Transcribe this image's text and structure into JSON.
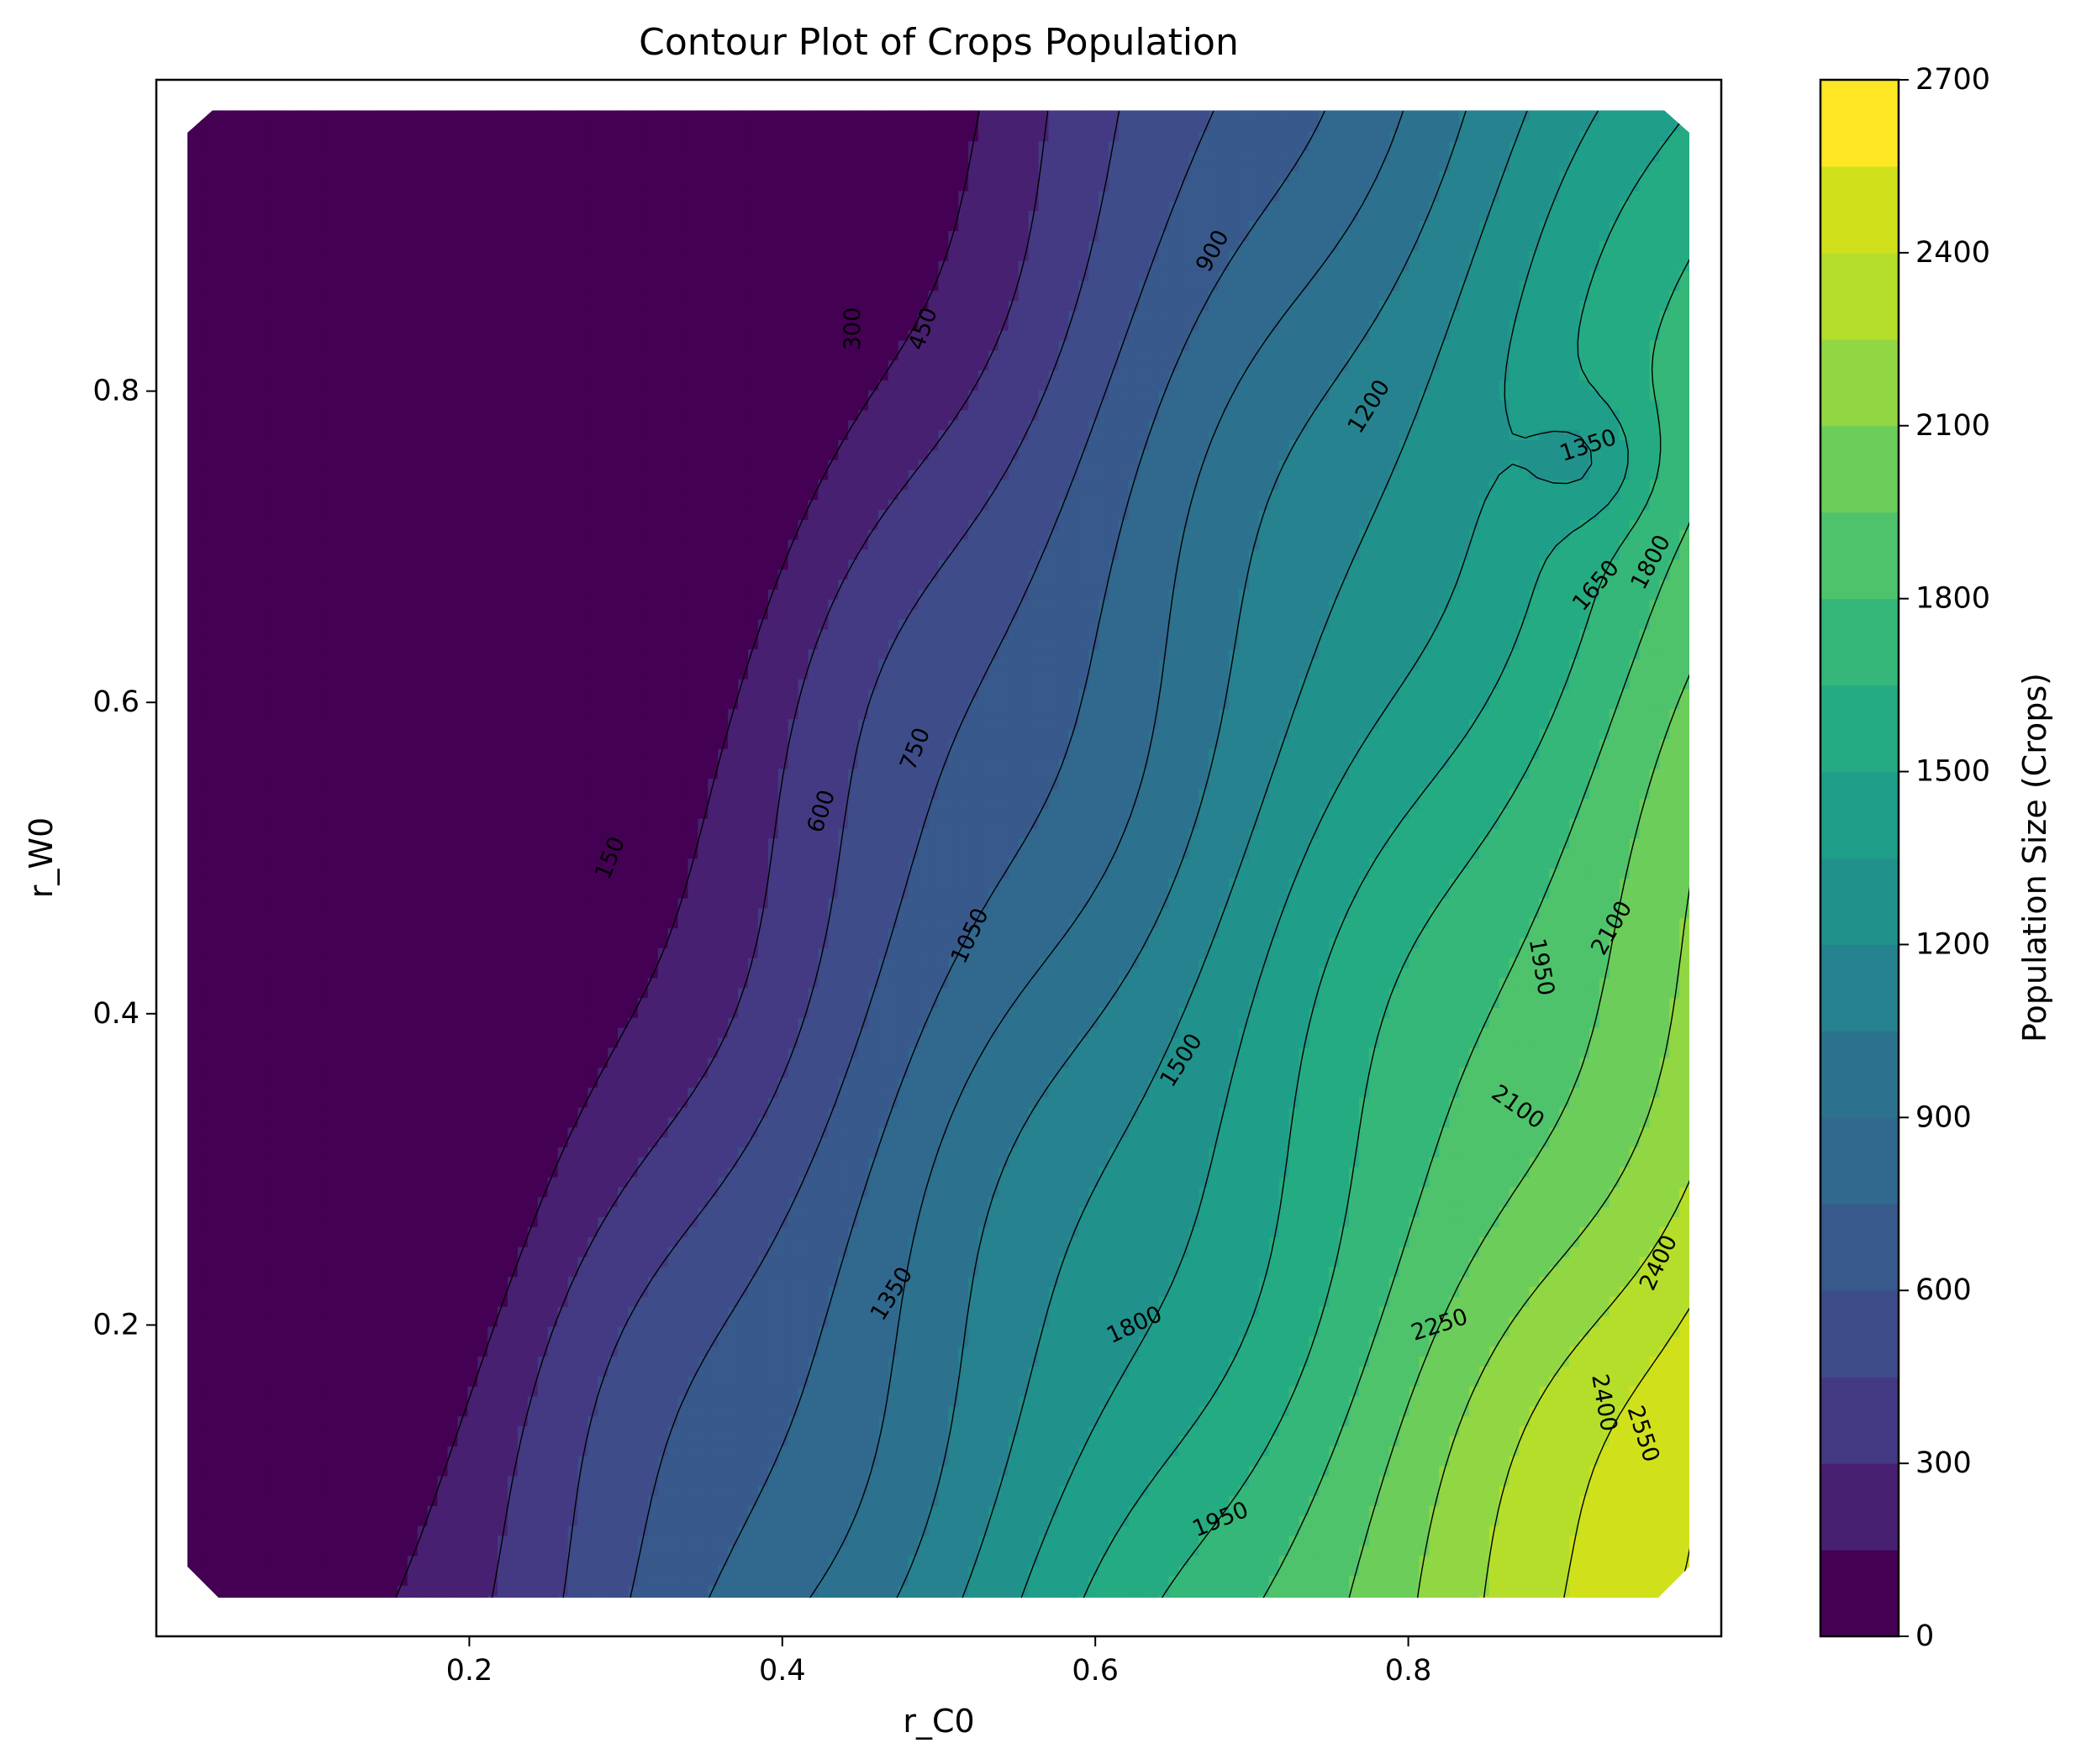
{
  "chart_data": {
    "type": "contour",
    "title": "Contour Plot of Crops Population",
    "xlabel": "r_C0",
    "ylabel": "r_W0",
    "colorbar_label": "Population Size (Crops)",
    "colormap": "viridis",
    "xlim": [
      0.0,
      1.0
    ],
    "ylim": [
      0.0,
      1.0
    ],
    "x_ticks": [
      0.2,
      0.4,
      0.6,
      0.8
    ],
    "x_tick_labels": [
      "0.2",
      "0.4",
      "0.6",
      "0.8"
    ],
    "y_ticks": [
      0.2,
      0.4,
      0.6,
      0.8
    ],
    "y_tick_labels": [
      "0.2",
      "0.4",
      "0.6",
      "0.8"
    ],
    "data_extent": {
      "x": [
        0.02,
        0.98
      ],
      "y": [
        0.02,
        0.98
      ]
    },
    "levels": [
      0,
      150,
      300,
      450,
      600,
      750,
      900,
      1050,
      1200,
      1350,
      1500,
      1650,
      1800,
      1950,
      2100,
      2250,
      2400,
      2550,
      2700
    ],
    "colorbar_ticks": [
      0,
      300,
      600,
      900,
      1200,
      1500,
      1800,
      2100,
      2400,
      2700
    ],
    "colorbar_tick_labels": [
      "0",
      "300",
      "600",
      "900",
      "1200",
      "1500",
      "1800",
      "2100",
      "2400",
      "2700"
    ],
    "level_colors": [
      "#440154",
      "#482071",
      "#443a83",
      "#3e4c8a",
      "#38598c",
      "#31688e",
      "#2c728e",
      "#26828e",
      "#21918c",
      "#1f9e89",
      "#25ab82",
      "#35b779",
      "#4ec36b",
      "#6ccd5a",
      "#90d743",
      "#b5de2b",
      "#d0e11c",
      "#fde725"
    ],
    "contour_labels": [
      {
        "text": "150",
        "x": 0.29,
        "y": 0.5,
        "rot": -68
      },
      {
        "text": "300",
        "x": 0.445,
        "y": 0.84,
        "rot": -90
      },
      {
        "text": "450",
        "x": 0.49,
        "y": 0.84,
        "rot": -70
      },
      {
        "text": "600",
        "x": 0.425,
        "y": 0.53,
        "rot": -72
      },
      {
        "text": "750",
        "x": 0.485,
        "y": 0.57,
        "rot": -68
      },
      {
        "text": "900",
        "x": 0.675,
        "y": 0.89,
        "rot": -62
      },
      {
        "text": "1050",
        "x": 0.52,
        "y": 0.45,
        "rot": -65
      },
      {
        "text": "1200",
        "x": 0.775,
        "y": 0.79,
        "rot": -58
      },
      {
        "text": "1350",
        "x": 0.915,
        "y": 0.765,
        "rot": -18
      },
      {
        "text": "1350",
        "x": 0.47,
        "y": 0.22,
        "rot": -58
      },
      {
        "text": "1500",
        "x": 0.655,
        "y": 0.37,
        "rot": -58
      },
      {
        "text": "1650",
        "x": 0.92,
        "y": 0.675,
        "rot": -50
      },
      {
        "text": "1800",
        "x": 0.955,
        "y": 0.69,
        "rot": -62
      },
      {
        "text": "1800",
        "x": 0.625,
        "y": 0.2,
        "rot": -25
      },
      {
        "text": "1950",
        "x": 0.885,
        "y": 0.43,
        "rot": 80
      },
      {
        "text": "2100",
        "x": 0.93,
        "y": 0.455,
        "rot": -60
      },
      {
        "text": "2100",
        "x": 0.87,
        "y": 0.34,
        "rot": 35
      },
      {
        "text": "1950",
        "x": 0.68,
        "y": 0.075,
        "rot": -22
      },
      {
        "text": "2250",
        "x": 0.82,
        "y": 0.2,
        "rot": -18
      },
      {
        "text": "2400",
        "x": 0.96,
        "y": 0.24,
        "rot": -65
      },
      {
        "text": "2400",
        "x": 0.925,
        "y": 0.15,
        "rot": 80
      },
      {
        "text": "2550",
        "x": 0.95,
        "y": 0.13,
        "rot": 72
      }
    ]
  }
}
